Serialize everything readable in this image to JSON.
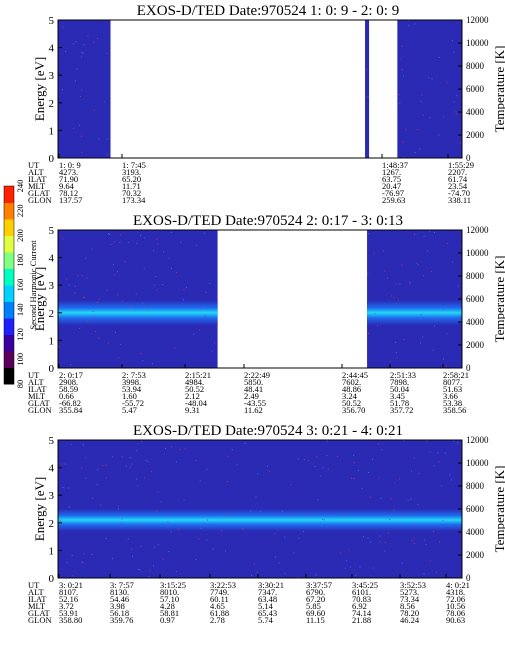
{
  "colorbar": {
    "label": "Second Harmonic Current",
    "ticks": [
      80,
      100,
      120,
      140,
      160,
      180,
      200,
      220,
      240
    ],
    "min": 80,
    "max": 240,
    "colors": [
      "#000000",
      "#5a005a",
      "#3a00a0",
      "#2020ff",
      "#0080ff",
      "#00d0ff",
      "#00ffc0",
      "#80ff80",
      "#e0ff40",
      "#ffd000",
      "#ff8000",
      "#ff2000"
    ]
  },
  "chart_data": [
    {
      "type": "heatmap",
      "title": "EXOS-D/TED   Date:970524  1: 0: 9 - 2: 0: 9",
      "ylabel": "Energy [eV]",
      "ylabel_right": "Temperature [K]",
      "ylim": [
        0,
        5
      ],
      "ylim_right": [
        0,
        12000
      ],
      "yticks": [
        0,
        1,
        2,
        3,
        4,
        5
      ],
      "yticks_right": [
        0,
        2000,
        4000,
        6000,
        8000,
        10000,
        12000
      ],
      "data_segments": [
        [
          0.0,
          0.13
        ],
        [
          0.76,
          0.77
        ],
        [
          0.84,
          1.0
        ]
      ],
      "band": null,
      "orbit": {
        "rows": [
          "UT",
          "ALT",
          "ILAT",
          "MLT",
          "GLAT",
          "GLON"
        ],
        "columns": [
          {
            "values": [
              "1: 0: 9",
              "4273.",
              "71.90",
              "9.64",
              "78.12",
              "137.57"
            ]
          },
          {
            "values": [
              "1: 7:45",
              "3193.",
              "65.20",
              "11.71",
              "70.32",
              "173.34"
            ]
          },
          {
            "values": [
              "1:48:37",
              "1267.",
              "63.75",
              "20.47",
              "-76.97",
              "259.63"
            ]
          },
          {
            "values": [
              "1:55:29",
              "2207.",
              "61.74",
              "23.54",
              "-74.70",
              "338.11"
            ]
          }
        ]
      }
    },
    {
      "type": "heatmap",
      "title": "EXOS-D/TED   Date:970524  2: 0:17 - 3: 0:13",
      "ylabel": "Energy [eV]",
      "ylabel_right": "Temperature [K]",
      "ylim": [
        0,
        5
      ],
      "ylim_right": [
        0,
        12000
      ],
      "yticks": [
        0,
        1,
        2,
        3,
        4,
        5
      ],
      "yticks_right": [
        0,
        2000,
        4000,
        6000,
        8000,
        10000,
        12000
      ],
      "data_segments": [
        [
          0.0,
          0.395
        ],
        [
          0.765,
          1.0
        ]
      ],
      "band": {
        "center_ev": 2.0,
        "width_ev": 0.9
      },
      "orbit": {
        "rows": [
          "UT",
          "ALT",
          "ILAT",
          "MLT",
          "GLAT",
          "GLON"
        ],
        "columns": [
          {
            "values": [
              "2: 0:17",
              "2908.",
              "58.59",
              "0.66",
              "-66.82",
              "355.84"
            ]
          },
          {
            "values": [
              "2: 7:53",
              "3998.",
              "53.94",
              "1.60",
              "-55.72",
              "5.47"
            ]
          },
          {
            "values": [
              "2:15:21",
              "4984.",
              "50.52",
              "2.12",
              "-48.04",
              "9.31"
            ]
          },
          {
            "values": [
              "2:22:49",
              "5850.",
              "48.41",
              "2.49",
              "-43.55",
              "11.62"
            ]
          },
          {
            "values": [
              "2:44:45",
              "7602.",
              "48.86",
              "3.24",
              "50.52",
              "356.70"
            ]
          },
          {
            "values": [
              "2:51:33",
              "7898.",
              "50.04",
              "3.45",
              "51.78",
              "357.72"
            ]
          },
          {
            "values": [
              "2:58:21",
              "8077.",
              "51.63",
              "3.66",
              "53.38",
              "358.56"
            ]
          }
        ]
      }
    },
    {
      "type": "heatmap",
      "title": "EXOS-D/TED   Date:970524  3: 0:21 - 4: 0:21",
      "ylabel": "Energy [eV]",
      "ylabel_right": "Temperature [K]",
      "ylim": [
        0,
        5
      ],
      "ylim_right": [
        0,
        12000
      ],
      "yticks": [
        0,
        1,
        2,
        3,
        4,
        5
      ],
      "yticks_right": [
        0,
        2000,
        4000,
        6000,
        8000,
        10000,
        12000
      ],
      "data_segments": [
        [
          0.0,
          1.0
        ]
      ],
      "band": {
        "center_ev": 2.1,
        "width_ev": 0.8
      },
      "orbit": {
        "rows": [
          "UT",
          "ALT",
          "ILAT",
          "MLT",
          "GLAT",
          "GLON"
        ],
        "columns": [
          {
            "values": [
              "3: 0:21",
              "8107.",
              "52.16",
              "3.72",
              "53.91",
              "358.80"
            ]
          },
          {
            "values": [
              "3: 7:57",
              "8130.",
              "54.46",
              "3.98",
              "56.18",
              "359.76"
            ]
          },
          {
            "values": [
              "3:15:25",
              "8010.",
              "57.10",
              "4.28",
              "58.81",
              "0.97"
            ]
          },
          {
            "values": [
              "3:22:53",
              "7749.",
              "60.11",
              "4.65",
              "61.88",
              "2.78"
            ]
          },
          {
            "values": [
              "3:30:21",
              "7347.",
              "63.48",
              "5.14",
              "65.43",
              "5.74"
            ]
          },
          {
            "values": [
              "3:37:57",
              "6790.",
              "67.20",
              "5.85",
              "69.60",
              "11.15"
            ]
          },
          {
            "values": [
              "3:45:25",
              "6101.",
              "70.83",
              "6.92",
              "74.14",
              "21.88"
            ]
          },
          {
            "values": [
              "3:52:53",
              "5273.",
              "73.34",
              "8.56",
              "78.20",
              "46.24"
            ]
          },
          {
            "values": [
              "4: 0:21",
              "4318.",
              "72.06",
              "10.56",
              "78.06",
              "90.63"
            ]
          }
        ]
      }
    }
  ]
}
